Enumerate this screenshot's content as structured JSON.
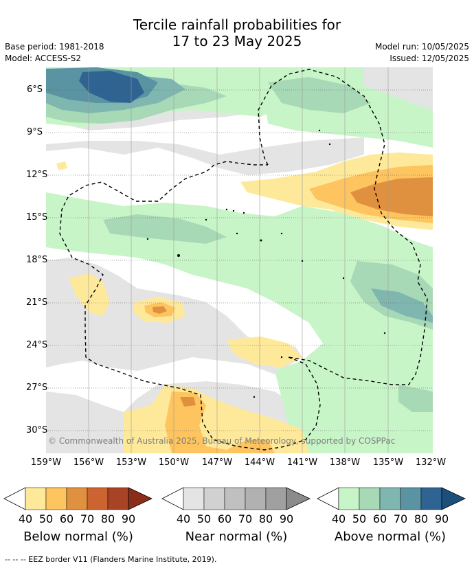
{
  "title_line1": "Tercile rainfall probabilities for",
  "title_line2": "17 to 23 May 2025",
  "base_period": "Base period: 1981-2018",
  "model": "Model: ACCESS-S2",
  "model_run": "Model run: 10/05/2025",
  "issued": "Issued: 12/05/2025",
  "copyright": "© Commonwealth of Australia 2025, Bureau of Meteorology, supported by COSPPac",
  "footer": "--  --  -- EEZ border V11 (Flanders Marine Institute, 2019).",
  "lat_labels": [
    "6°S",
    "9°S",
    "12°S",
    "15°S",
    "18°S",
    "21°S",
    "24°S",
    "27°S",
    "30°S"
  ],
  "lon_labels": [
    "159°W",
    "156°W",
    "153°W",
    "150°W",
    "147°W",
    "144°W",
    "141°W",
    "138°W",
    "135°W",
    "132°W"
  ],
  "colorbars": [
    {
      "title": "Below normal (%)",
      "ticks": [
        "40",
        "50",
        "60",
        "70",
        "80",
        "90"
      ],
      "colors": [
        "#fee99b",
        "#fdc45f",
        "#e0913f",
        "#cc6432",
        "#a94325",
        "#8b2e19"
      ]
    },
    {
      "title": "Near normal (%)",
      "ticks": [
        "40",
        "50",
        "60",
        "70",
        "80",
        "90"
      ],
      "colors": [
        "#e4e4e4",
        "#d1d1d1",
        "#c0c0c0",
        "#b1b1b1",
        "#a0a0a0",
        "#8b8b8b"
      ]
    },
    {
      "title": "Above normal (%)",
      "ticks": [
        "40",
        "50",
        "60",
        "70",
        "80",
        "90"
      ],
      "colors": [
        "#c8f5c8",
        "#a8d9b6",
        "#7fb7b0",
        "#5a93a2",
        "#2f6391",
        "#1c4f7c"
      ]
    }
  ]
}
